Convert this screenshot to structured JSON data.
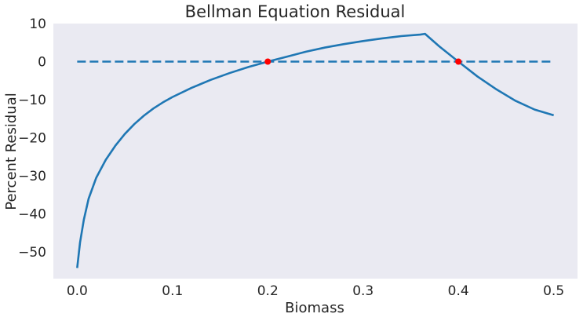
{
  "chart_data": {
    "type": "line",
    "title": "Bellman Equation Residual",
    "xlabel": "Biomass",
    "ylabel": "Percent Residual",
    "xlim": [
      -0.025,
      0.525
    ],
    "ylim": [
      -57,
      10
    ],
    "grid": false,
    "xticks": [
      0.0,
      0.1,
      0.2,
      0.3,
      0.4,
      0.5
    ],
    "xtick_labels": [
      "0.0",
      "0.1",
      "0.2",
      "0.3",
      "0.4",
      "0.5"
    ],
    "yticks": [
      10,
      0,
      -10,
      -20,
      -30,
      -40,
      -50
    ],
    "ytick_labels": [
      "10",
      "0",
      "−10",
      "−20",
      "−30",
      "−40",
      "−50"
    ],
    "series": [
      {
        "style": "solid",
        "x": [
          0.0,
          0.003,
          0.007,
          0.012,
          0.02,
          0.03,
          0.04,
          0.05,
          0.06,
          0.07,
          0.08,
          0.09,
          0.1,
          0.12,
          0.14,
          0.16,
          0.18,
          0.2,
          0.22,
          0.24,
          0.26,
          0.28,
          0.3,
          0.32,
          0.34,
          0.36,
          0.365,
          0.38,
          0.4,
          0.42,
          0.44,
          0.46,
          0.48,
          0.5
        ],
        "y": [
          -54.2,
          -47.5,
          -41.5,
          -36.0,
          -30.5,
          -25.8,
          -22.1,
          -19.0,
          -16.4,
          -14.2,
          -12.3,
          -10.7,
          -9.3,
          -6.9,
          -4.8,
          -3.0,
          -1.4,
          0.0,
          1.3,
          2.6,
          3.7,
          4.6,
          5.4,
          6.1,
          6.7,
          7.1,
          7.3,
          4.0,
          0.0,
          -3.9,
          -7.3,
          -10.3,
          -12.6,
          -14.1
        ],
        "color": "#1f77b4"
      },
      {
        "style": "dashed",
        "x": [
          0.0,
          0.5
        ],
        "y": [
          0,
          0
        ],
        "color": "#1f77b4"
      }
    ],
    "markers": {
      "x": [
        0.2,
        0.4
      ],
      "y": [
        0,
        0
      ],
      "color": "#ff0000"
    },
    "background_color": "#eaeaf2"
  }
}
